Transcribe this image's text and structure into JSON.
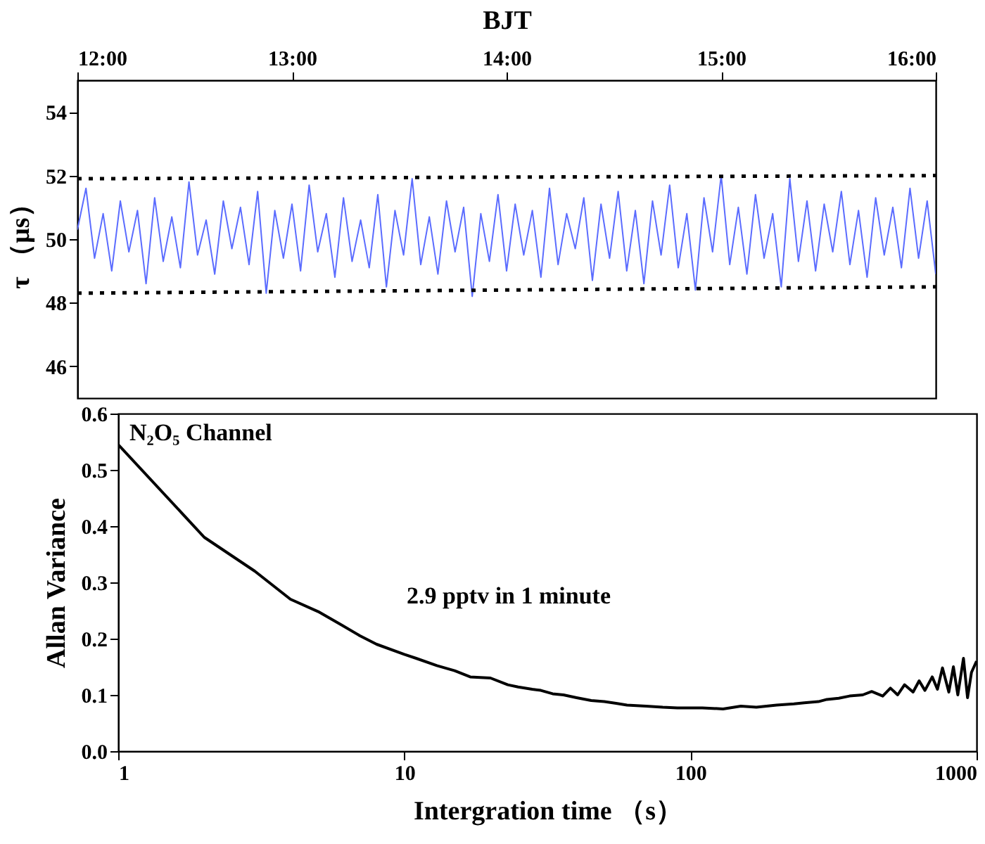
{
  "chart_data": [
    {
      "type": "line",
      "xlabel": "BJT",
      "ylabel": "τ （μs）",
      "xlim": [
        12,
        16
      ],
      "xticks": [
        {
          "value": 12,
          "label": "12:00"
        },
        {
          "value": 13,
          "label": "13:00"
        },
        {
          "value": 14,
          "label": "14:00"
        },
        {
          "value": 15,
          "label": "15:00"
        },
        {
          "value": 16,
          "label": "16:00"
        }
      ],
      "ylim": [
        45,
        55
      ],
      "yticks": [
        46,
        48,
        50,
        52,
        54
      ],
      "grid": false,
      "series": [
        {
          "color": "#5b6cff",
          "x": [
            12,
            12.04,
            12.08,
            12.12,
            12.16,
            12.2,
            12.24,
            12.28,
            12.32,
            12.36,
            12.4,
            12.44,
            12.48,
            12.52,
            12.56,
            12.6,
            12.64,
            12.68,
            12.72,
            12.76,
            12.8,
            12.84,
            12.88,
            12.92,
            12.96,
            13,
            13.04,
            13.08,
            13.12,
            13.16,
            13.2,
            13.24,
            13.28,
            13.32,
            13.36,
            13.4,
            13.44,
            13.48,
            13.52,
            13.56,
            13.6,
            13.64,
            13.68,
            13.72,
            13.76,
            13.8,
            13.84,
            13.88,
            13.92,
            13.96,
            14,
            14.04,
            14.08,
            14.12,
            14.16,
            14.2,
            14.24,
            14.28,
            14.32,
            14.36,
            14.4,
            14.44,
            14.48,
            14.52,
            14.56,
            14.6,
            14.64,
            14.68,
            14.72,
            14.76,
            14.8,
            14.84,
            14.88,
            14.92,
            14.96,
            15,
            15.04,
            15.08,
            15.12,
            15.16,
            15.2,
            15.24,
            15.28,
            15.32,
            15.36,
            15.4,
            15.44,
            15.48,
            15.52,
            15.56,
            15.6,
            15.64,
            15.68,
            15.72,
            15.76,
            15.8,
            15.84,
            15.88,
            15.92,
            15.96,
            16
          ],
          "values": [
            50.3,
            51.6,
            49.4,
            50.8,
            49.0,
            51.2,
            49.6,
            50.9,
            48.6,
            51.3,
            49.3,
            50.7,
            49.1,
            51.8,
            49.5,
            50.6,
            48.9,
            51.2,
            49.7,
            51.0,
            49.2,
            51.5,
            48.3,
            50.9,
            49.4,
            51.1,
            49.0,
            51.7,
            49.6,
            50.8,
            48.8,
            51.3,
            49.3,
            50.6,
            49.1,
            51.4,
            48.5,
            50.9,
            49.5,
            51.9,
            49.2,
            50.7,
            48.9,
            51.2,
            49.6,
            51.0,
            48.2,
            50.8,
            49.3,
            51.4,
            49.0,
            51.1,
            49.5,
            50.9,
            48.8,
            51.6,
            49.2,
            50.8,
            49.7,
            51.3,
            48.7,
            51.1,
            49.4,
            51.5,
            49.0,
            50.9,
            48.6,
            51.2,
            49.5,
            51.7,
            49.1,
            50.8,
            48.4,
            51.3,
            49.6,
            52.0,
            49.2,
            51.0,
            48.9,
            51.4,
            49.4,
            50.8,
            48.5,
            51.9,
            49.3,
            51.2,
            49.0,
            51.1,
            49.6,
            51.5,
            49.2,
            50.9,
            48.8,
            51.3,
            49.5,
            51.0,
            49.1,
            51.6,
            49.4,
            51.2,
            48.9
          ]
        },
        {
          "color": "#000000",
          "line_style": "dotted",
          "x": [
            12,
            16
          ],
          "values": [
            51.9,
            52.0
          ]
        },
        {
          "color": "#000000",
          "line_style": "dotted",
          "x": [
            12,
            16
          ],
          "values": [
            48.3,
            48.5
          ]
        }
      ]
    },
    {
      "type": "line",
      "xlabel": "Intergration time （s）",
      "ylabel": "Allan Variance",
      "log": "x",
      "xlim": [
        1,
        1000
      ],
      "xticks": [
        1,
        10,
        100,
        1000
      ],
      "ylim": [
        0,
        0.6
      ],
      "yticks": [
        {
          "value": 0,
          "label": "0.0"
        },
        {
          "value": 0.1,
          "label": "0.1"
        },
        {
          "value": 0.2,
          "label": "0.2"
        },
        {
          "value": 0.3,
          "label": "0.3"
        },
        {
          "value": 0.4,
          "label": "0.4"
        },
        {
          "value": 0.5,
          "label": "0.5"
        },
        {
          "value": 0.6,
          "label": "0.6"
        }
      ],
      "grid": false,
      "annotations": [
        "N₂O₅   Channel",
        "2.9 pptv in 1 minute"
      ],
      "series": [
        {
          "color": "#000000",
          "x": [
            1,
            2,
            3,
            4,
            5,
            6,
            7,
            8,
            10,
            11,
            13,
            15,
            17,
            20,
            23,
            25,
            28,
            30,
            33,
            36,
            40,
            45,
            50,
            55,
            60,
            70,
            80,
            90,
            100,
            110,
            130,
            150,
            170,
            200,
            230,
            250,
            280,
            300,
            330,
            360,
            400,
            430,
            470,
            500,
            530,
            560,
            600,
            630,
            660,
            700,
            730,
            760,
            800,
            830,
            860,
            900,
            930,
            960,
            1000
          ],
          "values": [
            0.545,
            0.38,
            0.32,
            0.27,
            0.248,
            0.225,
            0.205,
            0.19,
            0.172,
            0.165,
            0.152,
            0.143,
            0.132,
            0.13,
            0.118,
            0.114,
            0.11,
            0.108,
            0.102,
            0.1,
            0.095,
            0.09,
            0.088,
            0.085,
            0.082,
            0.08,
            0.078,
            0.077,
            0.077,
            0.077,
            0.075,
            0.08,
            0.078,
            0.082,
            0.084,
            0.086,
            0.088,
            0.092,
            0.094,
            0.098,
            0.1,
            0.106,
            0.098,
            0.112,
            0.1,
            0.118,
            0.105,
            0.125,
            0.108,
            0.132,
            0.11,
            0.148,
            0.105,
            0.15,
            0.1,
            0.165,
            0.095,
            0.14,
            0.16
          ]
        }
      ]
    }
  ]
}
